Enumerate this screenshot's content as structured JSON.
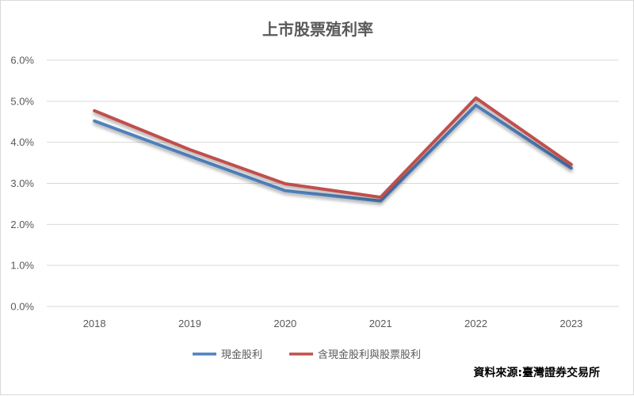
{
  "chart_data": {
    "type": "line",
    "title": "上市股票殖利率",
    "categories": [
      "2018",
      "2019",
      "2020",
      "2021",
      "2022",
      "2023"
    ],
    "series": [
      {
        "name": "現金股利",
        "color": "#4f81bd",
        "values": [
          4.52,
          3.66,
          2.82,
          2.57,
          4.9,
          3.37
        ]
      },
      {
        "name": "含現金股利與股票股利",
        "color": "#c0504d",
        "values": [
          4.77,
          3.82,
          2.99,
          2.66,
          5.08,
          3.46
        ]
      }
    ],
    "yticks": [
      "0.0%",
      "1.0%",
      "2.0%",
      "3.0%",
      "4.0%",
      "5.0%",
      "6.0%"
    ],
    "ylim": [
      0,
      6
    ],
    "grid": true,
    "legend_position": "bottom"
  },
  "source_note": "資料來源:臺灣證券交易所"
}
